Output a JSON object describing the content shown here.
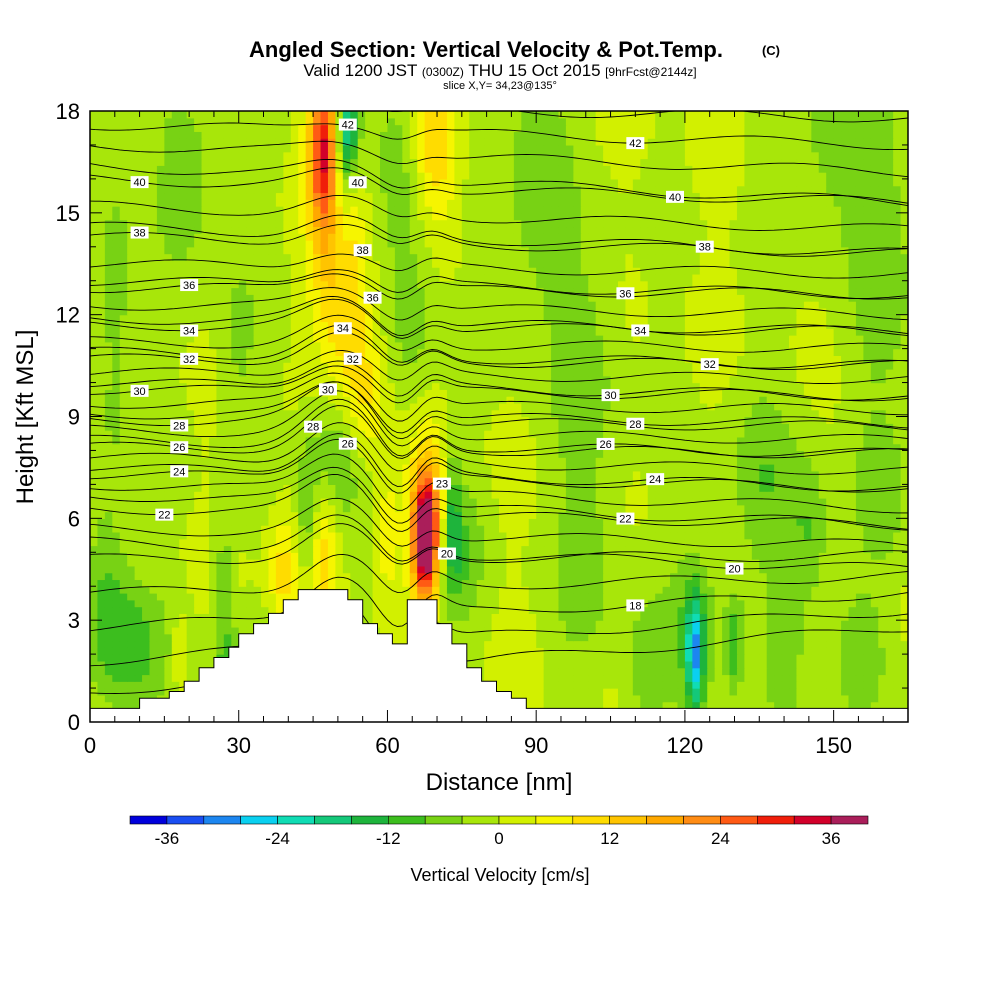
{
  "header": {
    "title": "Angled Section: Vertical Velocity & Pot.Temp.",
    "title_units": "(C)",
    "sub_valid": "Valid 1200 JST",
    "sub_utc": "(0300Z)",
    "sub_date": "THU 15 Oct 2015",
    "sub_fcst": "[9hrFcst@2144z]",
    "slice": "slice X,Y= 34,23@135°"
  },
  "chart_data": {
    "type": "heatmap",
    "xlabel": "Distance [nm]",
    "ylabel": "Height [Kft MSL]",
    "xlim": [
      0,
      165
    ],
    "ylim": [
      0,
      18
    ],
    "x_ticks": [
      "0",
      "30",
      "60",
      "90",
      "120",
      "150"
    ],
    "y_ticks": [
      "0",
      "3",
      "6",
      "9",
      "12",
      "15",
      "18"
    ],
    "grid": false,
    "colorbar": {
      "label": "Vertical Velocity [cm/s]",
      "placement": "bottom",
      "min": -40,
      "max": 40,
      "step": 4,
      "tick_labels": [
        "-36",
        "-24",
        "-12",
        "0",
        "12",
        "24",
        "36"
      ],
      "colors": [
        "#0000dc",
        "#1a4ef2",
        "#1c86f0",
        "#0ad0f0",
        "#10dcb4",
        "#14c87a",
        "#1eb43c",
        "#3cbe1e",
        "#78d214",
        "#a8e60a",
        "#d2f000",
        "#f6f500",
        "#ffdc00",
        "#ffc400",
        "#ffa800",
        "#ff8c14",
        "#ff5a14",
        "#f01e0a",
        "#d2002a",
        "#aa1e5a",
        "#7a107a"
      ]
    },
    "terrain": [
      [
        0,
        0.4
      ],
      [
        10,
        0.4
      ],
      [
        10,
        0.7
      ],
      [
        16,
        0.7
      ],
      [
        16,
        0.9
      ],
      [
        19,
        0.9
      ],
      [
        19,
        1.2
      ],
      [
        22,
        1.2
      ],
      [
        22,
        1.6
      ],
      [
        25,
        1.6
      ],
      [
        25,
        1.9
      ],
      [
        28,
        1.9
      ],
      [
        28,
        2.2
      ],
      [
        30,
        2.2
      ],
      [
        30,
        2.6
      ],
      [
        33,
        2.6
      ],
      [
        33,
        2.9
      ],
      [
        36,
        2.9
      ],
      [
        36,
        3.2
      ],
      [
        39,
        3.2
      ],
      [
        39,
        3.6
      ],
      [
        42,
        3.6
      ],
      [
        42,
        3.9
      ],
      [
        52,
        3.9
      ],
      [
        52,
        3.6
      ],
      [
        55,
        3.6
      ],
      [
        55,
        2.9
      ],
      [
        58,
        2.9
      ],
      [
        58,
        2.6
      ],
      [
        61,
        2.6
      ],
      [
        61,
        2.3
      ],
      [
        64,
        2.3
      ],
      [
        64,
        3.6
      ],
      [
        70,
        3.6
      ],
      [
        70,
        2.9
      ],
      [
        73,
        2.9
      ],
      [
        73,
        2.3
      ],
      [
        76,
        2.3
      ],
      [
        76,
        1.6
      ],
      [
        79,
        1.6
      ],
      [
        79,
        1.2
      ],
      [
        82,
        1.2
      ],
      [
        82,
        0.9
      ],
      [
        85,
        0.9
      ],
      [
        85,
        0.7
      ],
      [
        88,
        0.7
      ],
      [
        88,
        0.4
      ],
      [
        165,
        0.4
      ]
    ],
    "velocity_features": [
      {
        "x": 67.5,
        "y": 5.3,
        "sx": 1.6,
        "sy": 1.2,
        "w": 40
      },
      {
        "x": 68.5,
        "y": 6.3,
        "sx": 3,
        "sy": 1.5,
        "w": 16
      },
      {
        "x": 47,
        "y": 17,
        "sx": 2,
        "sy": 1.5,
        "w": 24
      },
      {
        "x": 48,
        "y": 15,
        "sx": 3,
        "sy": 2.5,
        "w": 12
      },
      {
        "x": 52,
        "y": 12,
        "sx": 3,
        "sy": 2.5,
        "w": 12
      },
      {
        "x": 56,
        "y": 9.5,
        "sx": 2.5,
        "sy": 1.5,
        "w": 8
      },
      {
        "x": 70,
        "y": 17,
        "sx": 3,
        "sy": 1.5,
        "w": 12
      },
      {
        "x": 47,
        "y": 5,
        "sx": 2,
        "sy": 1.5,
        "w": 10
      },
      {
        "x": 39,
        "y": 4.5,
        "sx": 2,
        "sy": 1.2,
        "w": 10
      },
      {
        "x": 60,
        "y": 5.5,
        "sx": 1.5,
        "sy": 1.2,
        "w": 8
      },
      {
        "x": 18,
        "y": 2,
        "sx": 1,
        "sy": 0.8,
        "w": 6
      },
      {
        "x": 52,
        "y": 17.5,
        "sx": 1.5,
        "sy": 1.2,
        "w": -20
      },
      {
        "x": 50.5,
        "y": 15,
        "sx": 1.5,
        "sy": 2.5,
        "w": -8
      },
      {
        "x": 50,
        "y": 8,
        "sx": 4,
        "sy": 1.5,
        "w": -10
      },
      {
        "x": 73,
        "y": 6,
        "sx": 1.2,
        "sy": 1.5,
        "w": -14
      },
      {
        "x": 75,
        "y": 5,
        "sx": 3,
        "sy": 1.5,
        "w": -8
      },
      {
        "x": 44,
        "y": 6,
        "sx": 1.5,
        "sy": 1.5,
        "w": -8
      },
      {
        "x": 8,
        "y": 2.2,
        "sx": 5,
        "sy": 1.5,
        "w": -10
      },
      {
        "x": 3,
        "y": 4,
        "sx": 3,
        "sy": 2,
        "w": -6
      },
      {
        "x": 27,
        "y": 3.5,
        "sx": 1.5,
        "sy": 2,
        "w": -8
      },
      {
        "x": 32,
        "y": 1.2,
        "sx": 5,
        "sy": 1,
        "w": -8
      },
      {
        "x": 65,
        "y": 12,
        "sx": 3,
        "sy": 2,
        "w": -6
      },
      {
        "x": 62,
        "y": 16,
        "sx": 3,
        "sy": 2,
        "w": -6
      },
      {
        "x": 90,
        "y": 16,
        "sx": 5,
        "sy": 3,
        "w": -7
      },
      {
        "x": 100,
        "y": 10,
        "sx": 5,
        "sy": 3,
        "w": -6
      },
      {
        "x": 136,
        "y": 7,
        "sx": 5,
        "sy": 2,
        "w": -7
      },
      {
        "x": 145,
        "y": 5.5,
        "sx": 3,
        "sy": 1.5,
        "w": -8
      },
      {
        "x": 160,
        "y": 6.5,
        "sx": 4,
        "sy": 1.5,
        "w": -6
      },
      {
        "x": 122,
        "y": 2,
        "sx": 1.2,
        "sy": 1.2,
        "w": -22
      },
      {
        "x": 122,
        "y": 2.5,
        "sx": 4,
        "sy": 2,
        "w": -8
      },
      {
        "x": 130,
        "y": 2.2,
        "sx": 1.2,
        "sy": 1,
        "w": -10
      },
      {
        "x": 112,
        "y": 1.5,
        "sx": 3,
        "sy": 1.5,
        "w": -6
      },
      {
        "x": 140,
        "y": 1.5,
        "sx": 3,
        "sy": 1.5,
        "w": -6
      },
      {
        "x": 155,
        "y": 2,
        "sx": 4,
        "sy": 1.5,
        "w": -6
      },
      {
        "x": 160,
        "y": 13,
        "sx": 5,
        "sy": 3,
        "w": -6
      },
      {
        "x": 150,
        "y": 17,
        "sx": 8,
        "sy": 2,
        "w": -6
      },
      {
        "x": 20,
        "y": 16,
        "sx": 6,
        "sy": 2,
        "w": -6
      },
      {
        "x": 5,
        "y": 12,
        "sx": 3,
        "sy": 4,
        "w": -6
      },
      {
        "x": 30,
        "y": 11,
        "sx": 3,
        "sy": 2,
        "w": -5
      },
      {
        "x": 100,
        "y": 4,
        "sx": 5,
        "sy": 2,
        "w": -5
      }
    ],
    "theta_lines": [
      {
        "value": 16,
        "left": 0.9,
        "right": 2.8,
        "bump": 1.5,
        "label": null
      },
      {
        "value": 17,
        "left": 1.8,
        "right": 3.3,
        "bump": 1.5,
        "label": null
      },
      {
        "value": 18,
        "left": 2.8,
        "right": 3.8,
        "bump": 1.3,
        "label": "18",
        "label_x": 110
      },
      {
        "value": 19,
        "left": 3.8,
        "right": 4.3,
        "bump": 1.0,
        "label": null
      },
      {
        "value": 20,
        "left": 4.8,
        "right": 4.9,
        "bump": 0.9,
        "label": "20",
        "label_x": 72
      },
      {
        "value": 20.5,
        "left": 5.3,
        "right": 4.5,
        "bump": 0.9,
        "label": "20",
        "label_x": 130
      },
      {
        "value": 21,
        "left": 5.7,
        "right": 5.2,
        "bump": 0.9,
        "label": null
      },
      {
        "value": 22,
        "left": 6.3,
        "right": 5.8,
        "bump": 1.1,
        "label": "22",
        "label_x": 15
      },
      {
        "value": 22.5,
        "left": 6.7,
        "right": 5.8,
        "bump": 1.1,
        "label": "22",
        "label_x": 108
      },
      {
        "value": 23,
        "left": 7.0,
        "right": 6.3,
        "bump": 1.2,
        "label": "23",
        "label_x": 71
      },
      {
        "value": 24,
        "left": 7.3,
        "right": 6.9,
        "bump": 1.3,
        "label": "24",
        "label_x": 18
      },
      {
        "value": 24.5,
        "left": 7.5,
        "right": 6.9,
        "bump": 1.3,
        "label": "24",
        "label_x": 114
      },
      {
        "value": 25,
        "left": 7.8,
        "right": 7.4,
        "bump": 1.2,
        "label": null
      },
      {
        "value": 26,
        "left": 8.1,
        "right": 7.9,
        "bump": 1.2,
        "label": "26",
        "label_x": 18
      },
      {
        "value": 26.5,
        "left": 8.3,
        "right": 7.9,
        "bump": 1.2,
        "label": "26",
        "label_x": 104
      },
      {
        "value": 27,
        "left": 8.6,
        "right": 8.3,
        "bump": 1.1,
        "label": null
      },
      {
        "value": 28,
        "left": 8.9,
        "right": 8.7,
        "bump": 1.1,
        "label": "28",
        "label_x": 18
      },
      {
        "value": 28.5,
        "left": 9.1,
        "right": 8.8,
        "bump": 1.0,
        "label": "28",
        "label_x": 110
      },
      {
        "value": 29,
        "left": 9.4,
        "right": 9.2,
        "bump": 1.0,
        "label": null
      },
      {
        "value": 30,
        "left": 9.8,
        "right": 9.6,
        "bump": 0.9,
        "label": "30",
        "label_x": 10
      },
      {
        "value": 30.5,
        "left": 10.0,
        "right": 9.6,
        "bump": 0.9,
        "label": "30",
        "label_x": 105
      },
      {
        "value": 31,
        "left": 10.3,
        "right": 10.1,
        "bump": 0.8,
        "label": null
      },
      {
        "value": 32,
        "left": 10.7,
        "right": 10.5,
        "bump": 0.8,
        "label": "32",
        "label_x": 20
      },
      {
        "value": 32.5,
        "left": 10.9,
        "right": 10.5,
        "bump": 0.8,
        "label": "32",
        "label_x": 125
      },
      {
        "value": 33,
        "left": 11.2,
        "right": 11.0,
        "bump": 0.7,
        "label": null
      },
      {
        "value": 34,
        "left": 11.7,
        "right": 11.5,
        "bump": 0.7,
        "label": "34",
        "label_x": 20
      },
      {
        "value": 34.5,
        "left": 11.9,
        "right": 11.5,
        "bump": 0.7,
        "label": "34",
        "label_x": 111
      },
      {
        "value": 35,
        "left": 12.3,
        "right": 12.0,
        "bump": 0.6,
        "label": null
      },
      {
        "value": 36,
        "left": 12.8,
        "right": 12.6,
        "bump": 0.6,
        "label": "36",
        "label_x": 20
      },
      {
        "value": 36.5,
        "left": 13.0,
        "right": 12.6,
        "bump": 0.6,
        "label": "36",
        "label_x": 108
      },
      {
        "value": 37,
        "left": 13.5,
        "right": 13.2,
        "bump": 0.5,
        "label": null
      },
      {
        "value": 38,
        "left": 14.3,
        "right": 13.8,
        "bump": 0.5,
        "label": "38",
        "label_x": 10
      },
      {
        "value": 38.5,
        "left": 14.6,
        "right": 13.8,
        "bump": 0.5,
        "label": "38",
        "label_x": 124
      },
      {
        "value": 39,
        "left": 15.2,
        "right": 14.5,
        "bump": 0.4,
        "label": null
      },
      {
        "value": 40,
        "left": 16.0,
        "right": 15.3,
        "bump": 0.4,
        "label": "40",
        "label_x": 10
      },
      {
        "value": 40.5,
        "left": 16.4,
        "right": 15.3,
        "bump": 0.4,
        "label": "40",
        "label_x": 118
      },
      {
        "value": 41,
        "left": 17.0,
        "right": 16.2,
        "bump": 0.3,
        "label": null
      },
      {
        "value": 42,
        "left": 17.6,
        "right": 17.0,
        "bump": 0.3,
        "label": "42",
        "label_x": 110
      },
      {
        "value": 43,
        "left": 18.2,
        "right": 17.8,
        "bump": 0.3,
        "label": null
      }
    ],
    "inline_labels": [
      {
        "text": "42",
        "x": 52,
        "y": 17.6
      },
      {
        "text": "40",
        "x": 54,
        "y": 15.9
      },
      {
        "text": "38",
        "x": 55,
        "y": 13.9
      },
      {
        "text": "36",
        "x": 57,
        "y": 12.5
      },
      {
        "text": "34",
        "x": 51,
        "y": 11.6
      },
      {
        "text": "32",
        "x": 53,
        "y": 10.7
      },
      {
        "text": "30",
        "x": 48,
        "y": 9.8
      },
      {
        "text": "28",
        "x": 45,
        "y": 8.7
      },
      {
        "text": "26",
        "x": 52,
        "y": 8.2
      }
    ]
  }
}
